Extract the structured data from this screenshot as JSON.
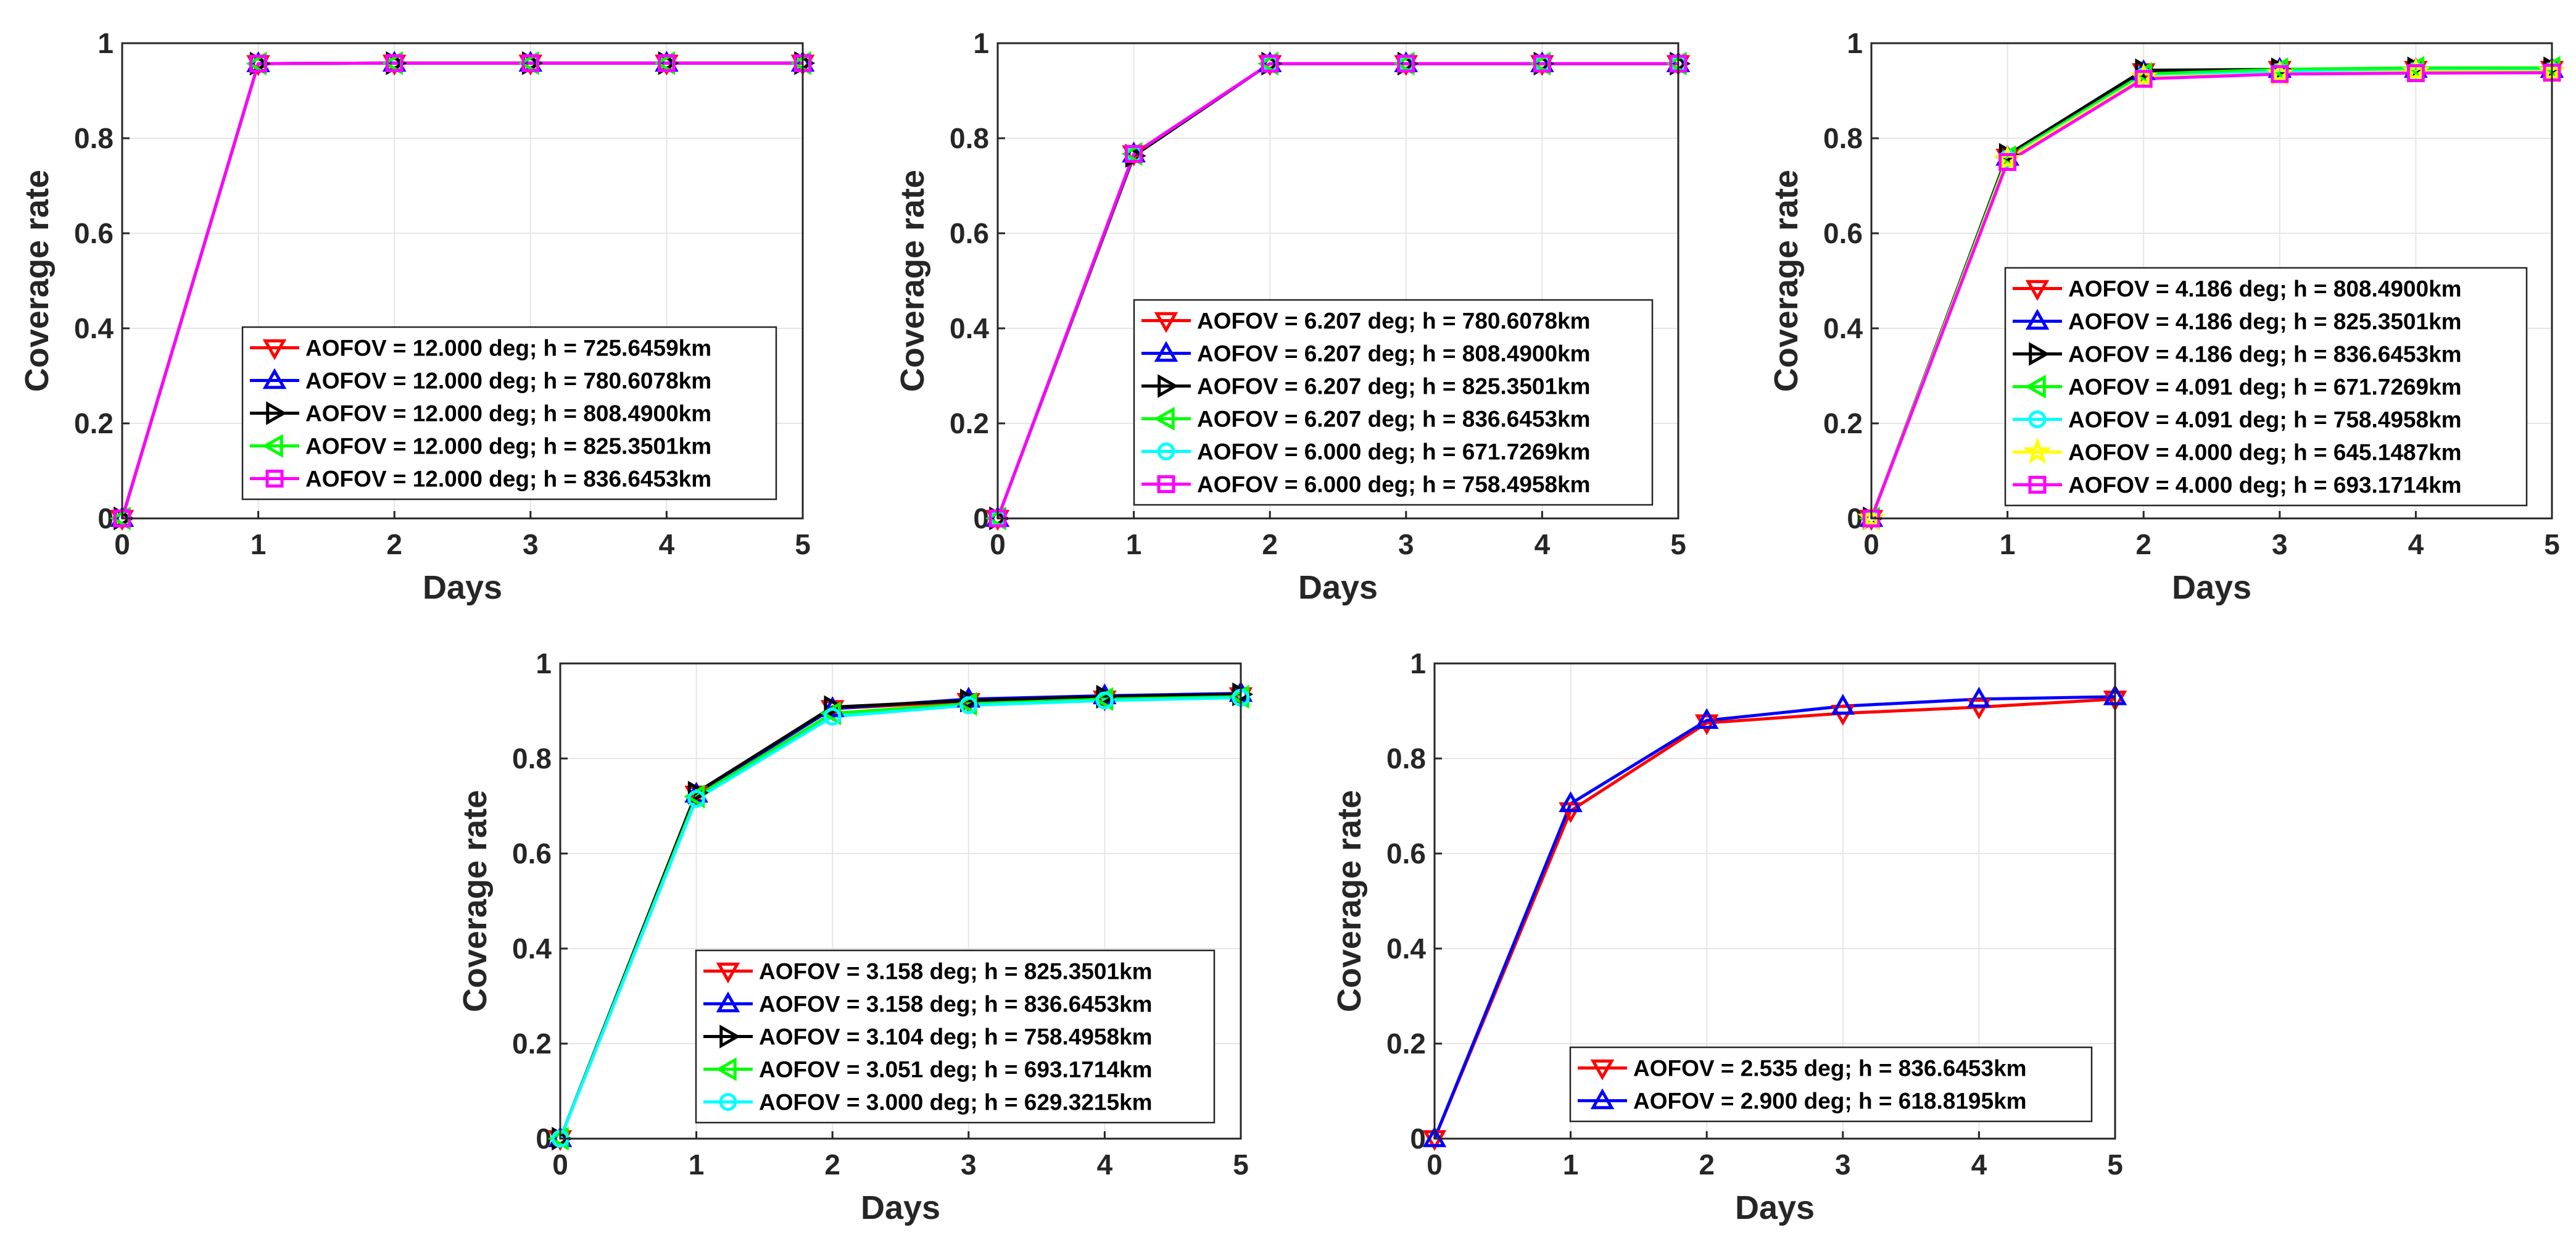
{
  "chart_data": [
    {
      "type": "line",
      "xlabel": "Days",
      "ylabel": "Coverage rate",
      "x": [
        0,
        1,
        2,
        3,
        4,
        5
      ],
      "xlim": [
        0,
        5
      ],
      "ylim": [
        0,
        1
      ],
      "xticks": [
        "0",
        "1",
        "2",
        "3",
        "4",
        "5"
      ],
      "yticks": [
        "0",
        "0.2",
        "0.4",
        "0.6",
        "0.8",
        "1"
      ],
      "grid": true,
      "legend_position": "bottom-right",
      "series": [
        {
          "name": "AOFOV = 12.000 deg; h = 725.6459km",
          "color": "#ff0000",
          "marker": "triangle-down",
          "values": [
            0,
            0.957,
            0.958,
            0.958,
            0.958,
            0.958
          ]
        },
        {
          "name": "AOFOV = 12.000 deg; h = 780.6078km",
          "color": "#0000ff",
          "marker": "triangle-up",
          "values": [
            0,
            0.957,
            0.958,
            0.958,
            0.958,
            0.958
          ]
        },
        {
          "name": "AOFOV = 12.000 deg; h = 808.4900km",
          "color": "#000000",
          "marker": "triangle-right",
          "values": [
            0,
            0.957,
            0.958,
            0.958,
            0.958,
            0.958
          ]
        },
        {
          "name": "AOFOV = 12.000 deg; h = 825.3501km",
          "color": "#00ff00",
          "marker": "triangle-left",
          "values": [
            0,
            0.957,
            0.958,
            0.958,
            0.958,
            0.958
          ]
        },
        {
          "name": "AOFOV = 12.000 deg; h = 836.6453km",
          "color": "#ff00ff",
          "marker": "square",
          "values": [
            0,
            0.957,
            0.958,
            0.958,
            0.958,
            0.958
          ]
        }
      ]
    },
    {
      "type": "line",
      "xlabel": "Days",
      "ylabel": "Coverage rate",
      "x": [
        0,
        1,
        2,
        3,
        4,
        5
      ],
      "xlim": [
        0,
        5
      ],
      "ylim": [
        0,
        1
      ],
      "xticks": [
        "0",
        "1",
        "2",
        "3",
        "4",
        "5"
      ],
      "yticks": [
        "0",
        "0.2",
        "0.4",
        "0.6",
        "0.8",
        "1"
      ],
      "grid": true,
      "legend_position": "bottom-right",
      "series": [
        {
          "name": "AOFOV = 6.207 deg; h = 780.6078km",
          "color": "#ff0000",
          "marker": "triangle-down",
          "values": [
            0,
            0.767,
            0.957,
            0.957,
            0.957,
            0.957
          ]
        },
        {
          "name": "AOFOV = 6.207 deg; h = 808.4900km",
          "color": "#0000ff",
          "marker": "triangle-up",
          "values": [
            0,
            0.767,
            0.957,
            0.957,
            0.957,
            0.957
          ]
        },
        {
          "name": "AOFOV = 6.207 deg; h = 825.3501km",
          "color": "#000000",
          "marker": "triangle-right",
          "values": [
            0,
            0.763,
            0.957,
            0.957,
            0.957,
            0.957
          ]
        },
        {
          "name": "AOFOV = 6.207 deg; h = 836.6453km",
          "color": "#00ff00",
          "marker": "triangle-left",
          "values": [
            0,
            0.767,
            0.957,
            0.957,
            0.957,
            0.957
          ]
        },
        {
          "name": "AOFOV = 6.000 deg; h = 671.7269km",
          "color": "#00ffff",
          "marker": "circle",
          "values": [
            0,
            0.767,
            0.957,
            0.957,
            0.957,
            0.957
          ]
        },
        {
          "name": "AOFOV = 6.000 deg; h = 758.4958km",
          "color": "#ff00ff",
          "marker": "square",
          "values": [
            0,
            0.767,
            0.957,
            0.957,
            0.957,
            0.957
          ]
        }
      ]
    },
    {
      "type": "line",
      "xlabel": "Days",
      "ylabel": "Coverage rate",
      "x": [
        0,
        1,
        2,
        3,
        4,
        5
      ],
      "xlim": [
        0,
        5
      ],
      "ylim": [
        0,
        1
      ],
      "xticks": [
        "0",
        "1",
        "2",
        "3",
        "4",
        "5"
      ],
      "yticks": [
        "0",
        "0.2",
        "0.4",
        "0.6",
        "0.8",
        "1"
      ],
      "grid": true,
      "legend_position": "bottom-right",
      "series": [
        {
          "name": "AOFOV = 4.186 deg; h = 808.4900km",
          "color": "#ff0000",
          "marker": "triangle-down",
          "values": [
            0,
            0.76,
            0.94,
            0.945,
            0.945,
            0.945
          ]
        },
        {
          "name": "AOFOV = 4.186 deg; h = 825.3501km",
          "color": "#0000ff",
          "marker": "triangle-up",
          "values": [
            0,
            0.76,
            0.94,
            0.945,
            0.945,
            0.945
          ]
        },
        {
          "name": "AOFOV = 4.186 deg; h = 836.6453km",
          "color": "#000000",
          "marker": "triangle-right",
          "values": [
            0,
            0.765,
            0.943,
            0.945,
            0.947,
            0.947
          ]
        },
        {
          "name": "AOFOV = 4.091 deg; h = 671.7269km",
          "color": "#00ff00",
          "marker": "triangle-left",
          "values": [
            0,
            0.76,
            0.935,
            0.945,
            0.948,
            0.948
          ]
        },
        {
          "name": "AOFOV = 4.091 deg; h = 758.4958km",
          "color": "#00ffff",
          "marker": "circle",
          "values": [
            0,
            0.757,
            0.93,
            0.94,
            0.942,
            0.942
          ]
        },
        {
          "name": "AOFOV = 4.000 deg; h = 645.1487km",
          "color": "#ffff00",
          "marker": "star",
          "values": [
            0,
            0.755,
            0.928,
            0.935,
            0.94,
            0.94
          ]
        },
        {
          "name": "AOFOV = 4.000 deg; h = 693.1714km",
          "color": "#ff00ff",
          "marker": "square",
          "values": [
            0,
            0.75,
            0.925,
            0.935,
            0.937,
            0.938
          ]
        }
      ]
    },
    {
      "type": "line",
      "xlabel": "Days",
      "ylabel": "Coverage rate",
      "x": [
        0,
        1,
        2,
        3,
        4,
        5
      ],
      "xlim": [
        0,
        5
      ],
      "ylim": [
        0,
        1
      ],
      "xticks": [
        "0",
        "1",
        "2",
        "3",
        "4",
        "5"
      ],
      "yticks": [
        "0",
        "0.2",
        "0.4",
        "0.6",
        "0.8",
        "1"
      ],
      "grid": true,
      "legend_position": "bottom-right",
      "series": [
        {
          "name": "AOFOV = 3.158 deg; h = 825.3501km",
          "color": "#ff0000",
          "marker": "triangle-down",
          "values": [
            0,
            0.725,
            0.905,
            0.92,
            0.925,
            0.932
          ]
        },
        {
          "name": "AOFOV = 3.158 deg; h = 836.6453km",
          "color": "#0000ff",
          "marker": "triangle-up",
          "values": [
            0,
            0.725,
            0.905,
            0.925,
            0.932,
            0.937
          ]
        },
        {
          "name": "AOFOV = 3.104 deg; h = 758.4958km",
          "color": "#000000",
          "marker": "triangle-right",
          "values": [
            0,
            0.728,
            0.908,
            0.922,
            0.93,
            0.935
          ]
        },
        {
          "name": "AOFOV = 3.051 deg; h = 693.1714km",
          "color": "#00ff00",
          "marker": "triangle-left",
          "values": [
            0,
            0.72,
            0.895,
            0.915,
            0.925,
            0.93
          ]
        },
        {
          "name": "AOFOV = 3.000 deg; h = 629.3215km",
          "color": "#00ffff",
          "marker": "circle",
          "values": [
            0,
            0.715,
            0.888,
            0.912,
            0.922,
            0.928
          ]
        }
      ]
    },
    {
      "type": "line",
      "xlabel": "Days",
      "ylabel": "Coverage rate",
      "x": [
        0,
        1,
        2,
        3,
        4,
        5
      ],
      "xlim": [
        0,
        5
      ],
      "ylim": [
        0,
        1
      ],
      "xticks": [
        "0",
        "1",
        "2",
        "3",
        "4",
        "5"
      ],
      "yticks": [
        "0",
        "0.2",
        "0.4",
        "0.6",
        "0.8",
        "1"
      ],
      "grid": true,
      "legend_position": "bottom-right",
      "series": [
        {
          "name": "AOFOV = 2.535 deg; h = 836.6453km",
          "color": "#ff0000",
          "marker": "triangle-down",
          "values": [
            0,
            0.69,
            0.875,
            0.895,
            0.908,
            0.925
          ]
        },
        {
          "name": "AOFOV = 2.900 deg; h = 618.8195km",
          "color": "#0000ff",
          "marker": "triangle-up",
          "values": [
            0,
            0.705,
            0.88,
            0.91,
            0.925,
            0.93
          ]
        }
      ]
    }
  ]
}
